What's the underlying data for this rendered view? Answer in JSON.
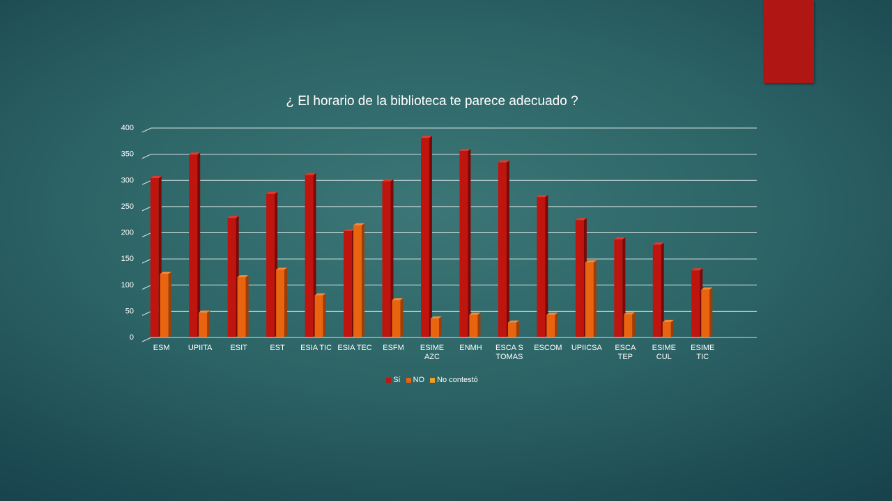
{
  "slide": {
    "accent_color": "#b01714"
  },
  "chart_data": {
    "type": "bar",
    "title": "¿ El horario de la biblioteca te parece adecuado ?",
    "xlabel": "",
    "ylabel": "",
    "ylim": [
      0,
      400
    ],
    "yticks": [
      0,
      50,
      100,
      150,
      200,
      250,
      300,
      350,
      400
    ],
    "grid": true,
    "legend_position": "bottom",
    "categories": [
      "ESM",
      "UPIITA",
      "ESIT",
      "EST",
      "ESIA TIC",
      "ESIA TEC",
      "ESFM",
      "ESIME AZC",
      "ENMH",
      "ESCA S TOMAS",
      "ESCOM",
      "UPIICSA",
      "ESCA TEP",
      "ESIME CUL",
      "ESIME TIC"
    ],
    "category_lines": [
      [
        "ESM"
      ],
      [
        "UPIITA"
      ],
      [
        "ESIT"
      ],
      [
        "EST"
      ],
      [
        "ESIA TIC"
      ],
      [
        "ESIA TEC"
      ],
      [
        "ESFM"
      ],
      [
        "ESIME",
        "AZC"
      ],
      [
        "ENMH"
      ],
      [
        "ESCA S",
        "TOMAS"
      ],
      [
        "ESCOM"
      ],
      [
        "UPIICSA"
      ],
      [
        "ESCA",
        "TEP"
      ],
      [
        "ESIME",
        "CUL"
      ],
      [
        "ESIME",
        "TIC"
      ]
    ],
    "series": [
      {
        "name": "Sí",
        "color": "#c0150f",
        "side_color": "#7a0a08",
        "top_color": "#e23a2c",
        "values": [
          303,
          348,
          227,
          273,
          309,
          202,
          297,
          380,
          355,
          333,
          267,
          223,
          186,
          176,
          127
        ]
      },
      {
        "name": "NO",
        "color": "#e8640f",
        "side_color": "#9e3e06",
        "top_color": "#f58a3c",
        "values": [
          120,
          46,
          114,
          128,
          79,
          213,
          70,
          35,
          42,
          27,
          42,
          142,
          43,
          28,
          90
        ]
      },
      {
        "name": "No contestó",
        "color": "#f0a020",
        "side_color": "#a86b0c",
        "top_color": "#f7c05a",
        "values": [
          0,
          0,
          0,
          0,
          0,
          0,
          0,
          0,
          0,
          0,
          0,
          0,
          0,
          0,
          0
        ]
      }
    ]
  }
}
